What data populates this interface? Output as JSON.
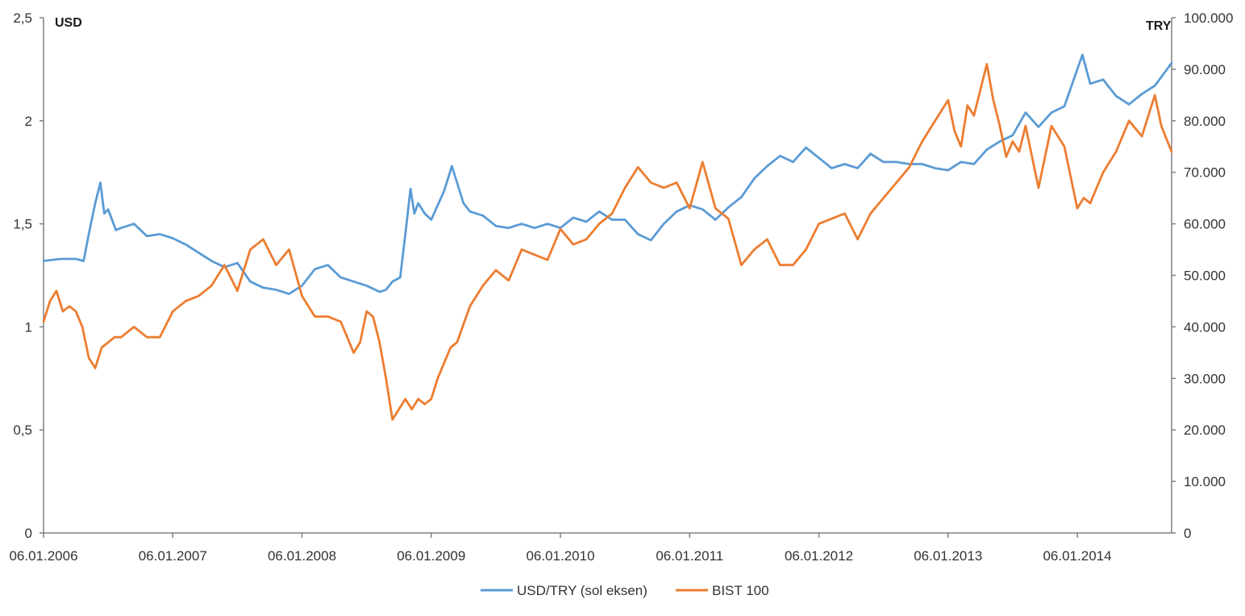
{
  "chart_data": {
    "type": "line",
    "title": "",
    "ylabel_left": "USD",
    "ylabel_right": "TRY",
    "ylim_left": [
      0,
      2.5
    ],
    "ylim_right": [
      0,
      100000
    ],
    "x_tick_labels": [
      "06.01.2006",
      "06.01.2007",
      "06.01.2008",
      "06.01.2009",
      "06.01.2010",
      "06.01.2011",
      "06.01.2012",
      "06.01.2013",
      "06.01.2014"
    ],
    "y_left_ticks": [
      {
        "value": 0,
        "label": "0"
      },
      {
        "value": 0.5,
        "label": "0,5"
      },
      {
        "value": 1,
        "label": "1"
      },
      {
        "value": 1.5,
        "label": "1,5"
      },
      {
        "value": 2,
        "label": "2"
      },
      {
        "value": 2.5,
        "label": "2,5"
      }
    ],
    "y_right_ticks": [
      {
        "value": 0,
        "label": "0"
      },
      {
        "value": 10000,
        "label": "10.000"
      },
      {
        "value": 20000,
        "label": "20.000"
      },
      {
        "value": 30000,
        "label": "30.000"
      },
      {
        "value": 40000,
        "label": "40.000"
      },
      {
        "value": 50000,
        "label": "50.000"
      },
      {
        "value": 60000,
        "label": "60.000"
      },
      {
        "value": 70000,
        "label": "70.000"
      },
      {
        "value": 80000,
        "label": "80.000"
      },
      {
        "value": 90000,
        "label": "90.000"
      },
      {
        "value": 100000,
        "label": "100.000"
      }
    ],
    "legend": [
      "USD/TRY (sol eksen)",
      "BIST 100"
    ],
    "legend_position": "bottom",
    "x_range": [
      2006.0,
      2014.73
    ],
    "series": [
      {
        "name": "USD/TRY (sol eksen)",
        "axis": "left",
        "color": "#5b9bd5",
        "x": [
          2006.0,
          2006.13,
          2006.25,
          2006.31,
          2006.35,
          2006.4,
          2006.44,
          2006.47,
          2006.5,
          2006.53,
          2006.56,
          2006.6,
          2006.7,
          2006.8,
          2006.9,
          2007.0,
          2007.1,
          2007.2,
          2007.3,
          2007.4,
          2007.5,
          2007.6,
          2007.7,
          2007.8,
          2007.9,
          2008.0,
          2008.1,
          2008.2,
          2008.3,
          2008.4,
          2008.5,
          2008.6,
          2008.65,
          2008.7,
          2008.76,
          2008.8,
          2008.84,
          2008.87,
          2008.9,
          2008.95,
          2009.0,
          2009.1,
          2009.16,
          2009.2,
          2009.25,
          2009.3,
          2009.4,
          2009.5,
          2009.6,
          2009.7,
          2009.8,
          2009.9,
          2010.0,
          2010.1,
          2010.2,
          2010.3,
          2010.4,
          2010.5,
          2010.6,
          2010.7,
          2010.8,
          2010.9,
          2011.0,
          2011.1,
          2011.2,
          2011.3,
          2011.4,
          2011.5,
          2011.6,
          2011.7,
          2011.8,
          2011.9,
          2012.0,
          2012.1,
          2012.2,
          2012.3,
          2012.4,
          2012.5,
          2012.6,
          2012.7,
          2012.8,
          2012.9,
          2013.0,
          2013.1,
          2013.2,
          2013.3,
          2013.4,
          2013.5,
          2013.6,
          2013.7,
          2013.8,
          2013.9,
          2014.0,
          2014.04,
          2014.1,
          2014.2,
          2014.3,
          2014.4,
          2014.5,
          2014.6,
          2014.73
        ],
        "y": [
          1.32,
          1.33,
          1.33,
          1.32,
          1.45,
          1.6,
          1.7,
          1.55,
          1.57,
          1.52,
          1.47,
          1.48,
          1.5,
          1.44,
          1.45,
          1.43,
          1.4,
          1.36,
          1.32,
          1.29,
          1.31,
          1.22,
          1.19,
          1.18,
          1.16,
          1.2,
          1.28,
          1.3,
          1.24,
          1.22,
          1.2,
          1.17,
          1.18,
          1.22,
          1.24,
          1.45,
          1.67,
          1.55,
          1.6,
          1.55,
          1.52,
          1.66,
          1.78,
          1.7,
          1.6,
          1.56,
          1.54,
          1.49,
          1.48,
          1.5,
          1.48,
          1.5,
          1.48,
          1.53,
          1.51,
          1.56,
          1.52,
          1.52,
          1.45,
          1.42,
          1.5,
          1.56,
          1.59,
          1.57,
          1.52,
          1.58,
          1.63,
          1.72,
          1.78,
          1.83,
          1.8,
          1.87,
          1.82,
          1.77,
          1.79,
          1.77,
          1.84,
          1.8,
          1.8,
          1.79,
          1.79,
          1.77,
          1.76,
          1.8,
          1.79,
          1.86,
          1.9,
          1.93,
          2.04,
          1.97,
          2.04,
          2.07,
          2.25,
          2.32,
          2.18,
          2.2,
          2.12,
          2.08,
          2.13,
          2.17,
          2.28
        ]
      },
      {
        "name": "BIST 100",
        "axis": "right",
        "color": "#ed7d31",
        "x": [
          2006.0,
          2006.05,
          2006.1,
          2006.15,
          2006.2,
          2006.25,
          2006.3,
          2006.35,
          2006.4,
          2006.45,
          2006.5,
          2006.55,
          2006.6,
          2006.7,
          2006.8,
          2006.9,
          2007.0,
          2007.1,
          2007.2,
          2007.3,
          2007.4,
          2007.5,
          2007.6,
          2007.7,
          2007.8,
          2007.9,
          2008.0,
          2008.1,
          2008.2,
          2008.3,
          2008.4,
          2008.45,
          2008.5,
          2008.55,
          2008.6,
          2008.65,
          2008.7,
          2008.75,
          2008.8,
          2008.85,
          2008.9,
          2008.95,
          2009.0,
          2009.05,
          2009.1,
          2009.15,
          2009.2,
          2009.3,
          2009.4,
          2009.5,
          2009.6,
          2009.7,
          2009.8,
          2009.9,
          2010.0,
          2010.1,
          2010.2,
          2010.3,
          2010.4,
          2010.5,
          2010.6,
          2010.7,
          2010.8,
          2010.9,
          2011.0,
          2011.1,
          2011.2,
          2011.3,
          2011.4,
          2011.5,
          2011.6,
          2011.7,
          2011.8,
          2011.9,
          2012.0,
          2012.1,
          2012.2,
          2012.3,
          2012.4,
          2012.5,
          2012.6,
          2012.7,
          2012.8,
          2012.9,
          2013.0,
          2013.05,
          2013.1,
          2013.15,
          2013.2,
          2013.25,
          2013.3,
          2013.35,
          2013.4,
          2013.45,
          2013.5,
          2013.55,
          2013.6,
          2013.7,
          2013.8,
          2013.9,
          2014.0,
          2014.05,
          2014.1,
          2014.2,
          2014.3,
          2014.4,
          2014.5,
          2014.6,
          2014.65,
          2014.73
        ],
        "y": [
          41000,
          45000,
          47000,
          43000,
          44000,
          43000,
          40000,
          34000,
          32000,
          36000,
          37000,
          38000,
          38000,
          40000,
          38000,
          38000,
          43000,
          45000,
          46000,
          48000,
          52000,
          47000,
          55000,
          57000,
          52000,
          55000,
          46000,
          42000,
          42000,
          41000,
          35000,
          37000,
          43000,
          42000,
          37000,
          30000,
          22000,
          24000,
          26000,
          24000,
          26000,
          25000,
          26000,
          30000,
          33000,
          36000,
          37000,
          44000,
          48000,
          51000,
          49000,
          55000,
          54000,
          53000,
          59000,
          56000,
          57000,
          60000,
          62000,
          67000,
          71000,
          68000,
          67000,
          68000,
          63000,
          72000,
          63000,
          61000,
          52000,
          55000,
          57000,
          52000,
          52000,
          55000,
          60000,
          61000,
          62000,
          57000,
          62000,
          65000,
          68000,
          71000,
          76000,
          80000,
          84000,
          78000,
          75000,
          83000,
          81000,
          86000,
          91000,
          84000,
          79000,
          73000,
          76000,
          74000,
          79000,
          67000,
          79000,
          75000,
          63000,
          65000,
          64000,
          70000,
          74000,
          80000,
          77000,
          85000,
          79000,
          74000
        ]
      }
    ]
  }
}
